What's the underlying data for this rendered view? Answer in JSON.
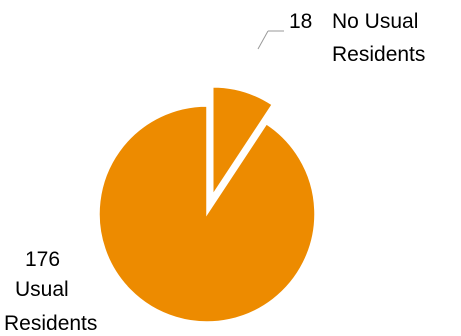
{
  "chart_data": {
    "type": "pie",
    "title": "",
    "exploded": true,
    "slices": [
      {
        "value": 18,
        "value_label": "18",
        "label_lines": [
          "No Usual",
          "Residents"
        ],
        "color": "#ED8B00"
      },
      {
        "value": 176,
        "value_label": "176",
        "label_lines": [
          "Usual",
          "Residents"
        ],
        "color": "#ED8B00"
      }
    ],
    "legend": "none"
  }
}
